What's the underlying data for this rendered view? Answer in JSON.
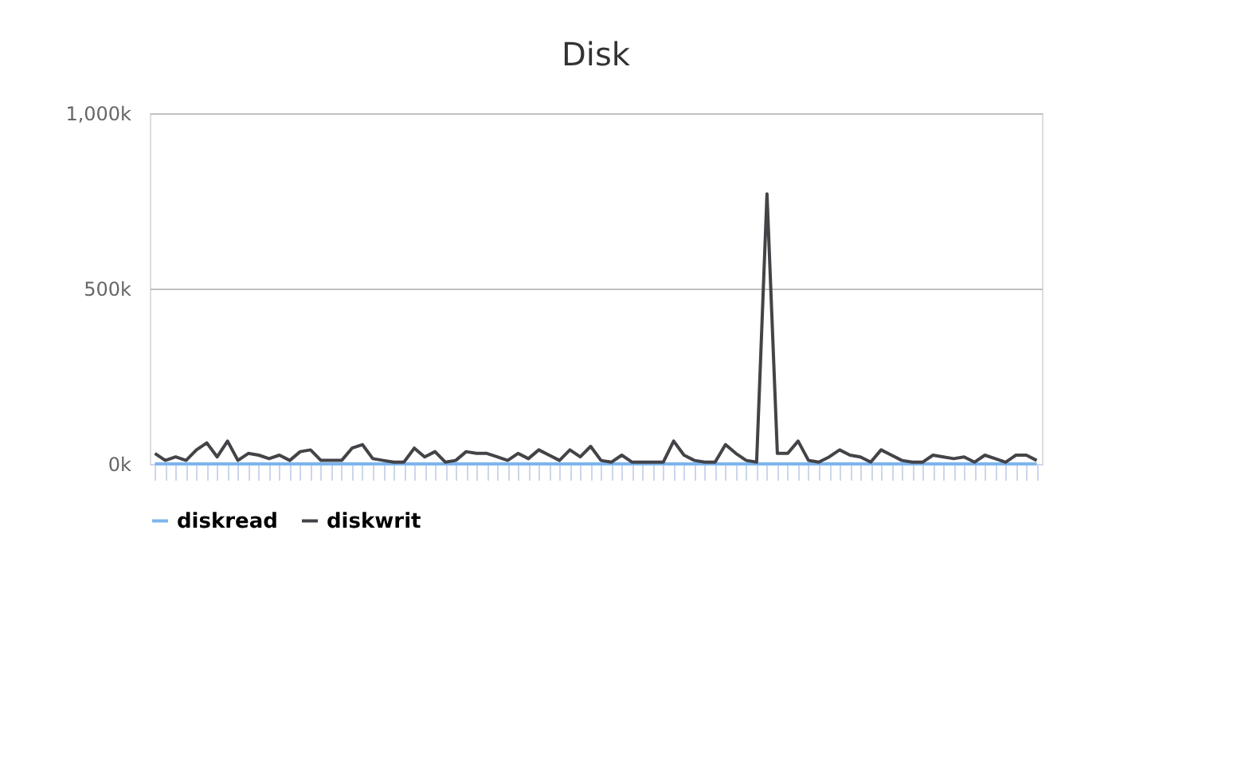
{
  "chart_data": {
    "type": "line",
    "title": "Disk",
    "categories": [
      null,
      null,
      null,
      null,
      null,
      null,
      null,
      null,
      null,
      null,
      null,
      null,
      null,
      null,
      null,
      null,
      null,
      null,
      null,
      null,
      null,
      null,
      null,
      null,
      null,
      null,
      null,
      null,
      null,
      null,
      null,
      null,
      null,
      null,
      null,
      null,
      null,
      null,
      null,
      null,
      null,
      null,
      null,
      null,
      null,
      null,
      null,
      null,
      null,
      null,
      null,
      null,
      null,
      null,
      null,
      null,
      null,
      null,
      null,
      null,
      null,
      null,
      null,
      null,
      null,
      null,
      null,
      null,
      null,
      null,
      null,
      null,
      null,
      null,
      null,
      null,
      null,
      null,
      null,
      null,
      null,
      null,
      null,
      null,
      null,
      null
    ],
    "series": [
      {
        "name": "diskread",
        "color": "#7cb5ec",
        "values": [
          0,
          0,
          0,
          0,
          0,
          0,
          0,
          0,
          0,
          0,
          0,
          0,
          0,
          0,
          0,
          0,
          0,
          0,
          0,
          0,
          0,
          0,
          0,
          0,
          0,
          0,
          0,
          0,
          0,
          0,
          0,
          0,
          0,
          0,
          0,
          0,
          0,
          0,
          0,
          0,
          0,
          0,
          0,
          0,
          0,
          0,
          0,
          0,
          0,
          0,
          0,
          0,
          0,
          0,
          0,
          0,
          0,
          0,
          0,
          0,
          0,
          0,
          0,
          0,
          0,
          0,
          0,
          0,
          0,
          0,
          0,
          0,
          0,
          0,
          0,
          0,
          0,
          0,
          0,
          0,
          0,
          0,
          0,
          0,
          0,
          0
        ]
      },
      {
        "name": "diskwrit",
        "color": "#434348",
        "values": [
          30000,
          10000,
          20000,
          10000,
          40000,
          60000,
          20000,
          65000,
          10000,
          30000,
          25000,
          15000,
          25000,
          10000,
          35000,
          40000,
          10000,
          10000,
          10000,
          45000,
          55000,
          15000,
          10000,
          5000,
          5000,
          45000,
          20000,
          35000,
          5000,
          10000,
          35000,
          30000,
          30000,
          20000,
          10000,
          30000,
          15000,
          40000,
          25000,
          10000,
          40000,
          20000,
          50000,
          10000,
          5000,
          25000,
          5000,
          5000,
          5000,
          5000,
          65000,
          25000,
          10000,
          5000,
          5000,
          55000,
          30000,
          10000,
          5000,
          770000,
          30000,
          30000,
          65000,
          10000,
          5000,
          20000,
          40000,
          25000,
          20000,
          5000,
          40000,
          25000,
          10000,
          5000,
          5000,
          25000,
          20000,
          15000,
          20000,
          5000,
          25000,
          15000,
          5000,
          25000,
          25000,
          10000
        ]
      }
    ],
    "ylim": [
      0,
      1000000
    ],
    "yticks": [
      {
        "value": 0,
        "label": "0k"
      },
      {
        "value": 500000,
        "label": "500k"
      },
      {
        "value": 1000000,
        "label": "1,000k"
      }
    ],
    "grid": "y",
    "legend": "bottom",
    "marker": "none",
    "line_style": "solid"
  }
}
